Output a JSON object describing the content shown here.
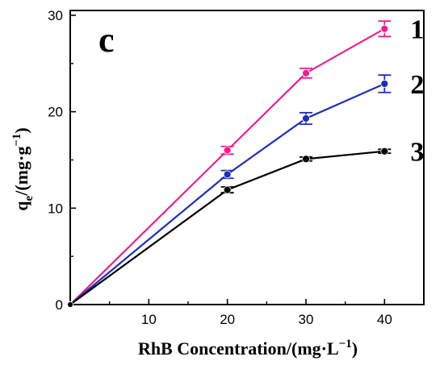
{
  "chart_data": {
    "type": "line",
    "panel_label": "c",
    "x": [
      0,
      20,
      30,
      40
    ],
    "xlim": [
      0,
      45
    ],
    "ylim": [
      0,
      30.5
    ],
    "xticks": [
      10,
      20,
      30,
      40
    ],
    "yticks": [
      0,
      10,
      20,
      30
    ],
    "xlabel": {
      "main": "RhB Concentration/(mg·L",
      "sup": "−1",
      "close": ")"
    },
    "ylabel": {
      "q": "q",
      "sub": "e",
      "main": "/(mg·g",
      "sup": "−1",
      "close": ")"
    },
    "origin_label": "0",
    "grid": false,
    "series": [
      {
        "label": "1",
        "color": "#e8228c",
        "values": [
          0,
          16.0,
          24.0,
          28.6
        ],
        "errors": [
          0,
          0.4,
          0.5,
          0.8
        ]
      },
      {
        "label": "2",
        "color": "#1f2fb0",
        "values": [
          0,
          13.5,
          19.3,
          22.9
        ],
        "errors": [
          0,
          0.4,
          0.6,
          0.9
        ]
      },
      {
        "label": "3",
        "color": "#000000",
        "values": [
          0,
          11.9,
          15.1,
          15.9
        ],
        "errors": [
          0,
          0.3,
          0.2,
          0.2
        ]
      }
    ]
  }
}
